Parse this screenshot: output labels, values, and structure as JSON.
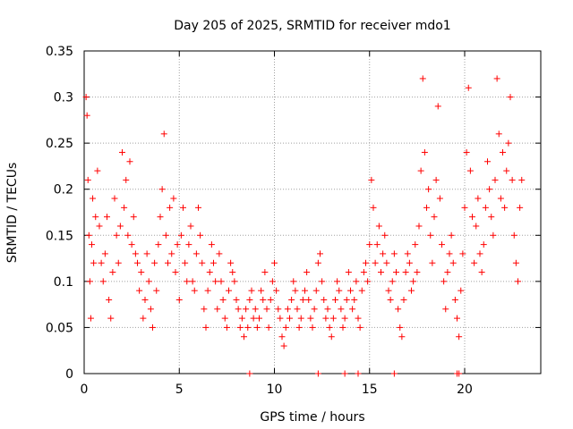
{
  "chart_data": {
    "type": "scatter",
    "title": "Day 205 of 2025, SRMTID for receiver mdo1",
    "xlabel": "GPS time / hours",
    "ylabel": "SRMTID / TECUs",
    "xlim": [
      0,
      24
    ],
    "ylim": [
      0,
      0.35
    ],
    "xticks": [
      0,
      5,
      10,
      15,
      20
    ],
    "yticks": [
      0,
      0.05,
      0.1,
      0.15,
      0.2,
      0.25,
      0.3,
      0.35
    ],
    "xtick_labels": [
      "0",
      "5",
      "10",
      "15",
      "20"
    ],
    "ytick_labels": [
      "0",
      "0.05",
      "0.1",
      "0.15",
      "0.2",
      "0.25",
      "0.3",
      "0.35"
    ],
    "grid": true,
    "marker": "+",
    "color": "#ff0000",
    "series": [
      {
        "name": "SRMTID",
        "x": [
          0.1,
          0.15,
          0.2,
          0.25,
          0.3,
          0.35,
          0.4,
          0.45,
          0.5,
          0.6,
          0.7,
          0.8,
          0.9,
          1.0,
          1.1,
          1.2,
          1.3,
          1.4,
          1.5,
          1.6,
          1.7,
          1.8,
          1.9,
          2.0,
          2.1,
          2.2,
          2.3,
          2.4,
          2.5,
          2.6,
          2.7,
          2.8,
          2.9,
          3.0,
          3.1,
          3.2,
          3.3,
          3.4,
          3.5,
          3.6,
          3.7,
          3.8,
          3.9,
          4.0,
          4.1,
          4.2,
          4.3,
          4.4,
          4.5,
          4.6,
          4.7,
          4.8,
          4.9,
          5.0,
          5.1,
          5.2,
          5.3,
          5.4,
          5.5,
          5.6,
          5.7,
          5.8,
          5.9,
          6.0,
          6.1,
          6.2,
          6.3,
          6.4,
          6.5,
          6.6,
          6.7,
          6.8,
          6.9,
          7.0,
          7.1,
          7.2,
          7.3,
          7.4,
          7.5,
          7.6,
          7.7,
          7.8,
          7.9,
          8.0,
          8.1,
          8.2,
          8.3,
          8.4,
          8.5,
          8.6,
          8.7,
          8.8,
          8.9,
          9.0,
          9.1,
          9.2,
          9.3,
          9.4,
          9.5,
          9.6,
          9.7,
          9.8,
          9.9,
          10.0,
          10.1,
          10.2,
          10.3,
          10.4,
          10.5,
          10.6,
          10.7,
          10.8,
          10.9,
          11.0,
          11.1,
          11.2,
          11.3,
          11.4,
          11.5,
          11.6,
          11.7,
          11.8,
          11.9,
          12.0,
          12.1,
          12.2,
          12.3,
          12.4,
          12.5,
          12.6,
          12.7,
          12.8,
          12.9,
          13.0,
          13.1,
          13.2,
          13.3,
          13.4,
          13.5,
          13.6,
          13.7,
          13.8,
          13.9,
          14.0,
          14.1,
          14.2,
          14.3,
          14.4,
          14.5,
          14.6,
          14.7,
          14.8,
          14.9,
          15.0,
          15.1,
          15.2,
          15.3,
          15.4,
          15.5,
          15.6,
          15.7,
          15.8,
          15.9,
          16.0,
          16.1,
          16.2,
          16.3,
          16.4,
          16.5,
          16.6,
          16.7,
          16.8,
          16.9,
          17.0,
          17.1,
          17.2,
          17.3,
          17.4,
          17.5,
          17.6,
          17.7,
          17.8,
          17.9,
          18.0,
          18.1,
          18.2,
          18.3,
          18.4,
          18.5,
          18.6,
          18.7,
          18.8,
          18.9,
          19.0,
          19.1,
          19.2,
          19.3,
          19.4,
          19.5,
          19.6,
          19.7,
          19.8,
          19.9,
          20.0,
          20.1,
          20.2,
          20.3,
          20.4,
          20.5,
          20.6,
          20.7,
          20.8,
          20.9,
          21.0,
          21.1,
          21.2,
          21.3,
          21.4,
          21.5,
          21.6,
          21.7,
          21.8,
          21.9,
          22.0,
          22.1,
          22.2,
          22.3,
          22.4,
          22.5,
          22.6,
          22.7,
          22.8,
          22.9,
          23.0,
          8.7,
          12.3,
          13.7,
          14.4,
          16.3,
          19.6,
          19.7
        ],
        "y": [
          0.3,
          0.28,
          0.21,
          0.15,
          0.1,
          0.06,
          0.14,
          0.19,
          0.12,
          0.17,
          0.22,
          0.16,
          0.12,
          0.1,
          0.13,
          0.17,
          0.08,
          0.06,
          0.11,
          0.19,
          0.15,
          0.12,
          0.16,
          0.24,
          0.18,
          0.21,
          0.15,
          0.23,
          0.14,
          0.17,
          0.13,
          0.12,
          0.09,
          0.11,
          0.06,
          0.08,
          0.13,
          0.1,
          0.07,
          0.05,
          0.12,
          0.09,
          0.14,
          0.17,
          0.2,
          0.26,
          0.15,
          0.12,
          0.18,
          0.13,
          0.19,
          0.11,
          0.14,
          0.08,
          0.15,
          0.18,
          0.12,
          0.1,
          0.14,
          0.16,
          0.1,
          0.09,
          0.13,
          0.18,
          0.15,
          0.12,
          0.07,
          0.05,
          0.09,
          0.11,
          0.14,
          0.12,
          0.1,
          0.07,
          0.13,
          0.1,
          0.08,
          0.06,
          0.05,
          0.09,
          0.12,
          0.11,
          0.1,
          0.08,
          0.07,
          0.05,
          0.06,
          0.04,
          0.07,
          0.05,
          0.08,
          0.09,
          0.06,
          0.07,
          0.05,
          0.06,
          0.09,
          0.08,
          0.11,
          0.07,
          0.05,
          0.08,
          0.1,
          0.12,
          0.09,
          0.07,
          0.06,
          0.04,
          0.03,
          0.05,
          0.07,
          0.06,
          0.08,
          0.1,
          0.09,
          0.07,
          0.05,
          0.06,
          0.08,
          0.09,
          0.11,
          0.08,
          0.06,
          0.05,
          0.07,
          0.09,
          0.12,
          0.13,
          0.1,
          0.08,
          0.06,
          0.07,
          0.05,
          0.04,
          0.06,
          0.08,
          0.1,
          0.09,
          0.07,
          0.05,
          0.06,
          0.08,
          0.11,
          0.09,
          0.07,
          0.08,
          0.1,
          0.06,
          0.05,
          0.09,
          0.11,
          0.12,
          0.1,
          0.14,
          0.21,
          0.18,
          0.12,
          0.14,
          0.16,
          0.11,
          0.13,
          0.15,
          0.12,
          0.09,
          0.08,
          0.1,
          0.13,
          0.11,
          0.07,
          0.05,
          0.04,
          0.08,
          0.11,
          0.13,
          0.12,
          0.09,
          0.1,
          0.14,
          0.11,
          0.16,
          0.22,
          0.32,
          0.24,
          0.18,
          0.2,
          0.15,
          0.12,
          0.17,
          0.21,
          0.29,
          0.19,
          0.14,
          0.1,
          0.07,
          0.11,
          0.13,
          0.15,
          0.12,
          0.08,
          0.06,
          0.04,
          0.09,
          0.13,
          0.18,
          0.24,
          0.31,
          0.22,
          0.17,
          0.12,
          0.16,
          0.19,
          0.13,
          0.11,
          0.14,
          0.18,
          0.23,
          0.2,
          0.17,
          0.15,
          0.21,
          0.32,
          0.26,
          0.19,
          0.24,
          0.18,
          0.22,
          0.25,
          0.3,
          0.21,
          0.15,
          0.12,
          0.1,
          0.18,
          0.21,
          0.0,
          0.0,
          0.0,
          0.0,
          0.0,
          0.0,
          0.0
        ]
      }
    ]
  }
}
